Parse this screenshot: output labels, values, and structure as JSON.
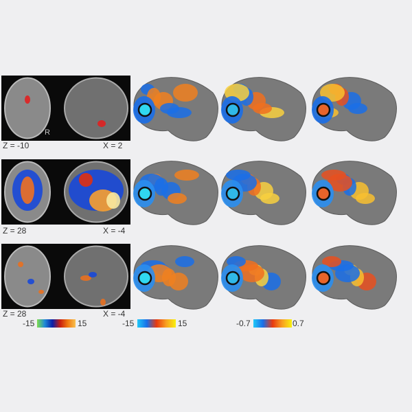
{
  "rows": [
    {
      "z_label": "Z = -10",
      "x_label": "X = 2",
      "marker": "R"
    },
    {
      "z_label": "Z = 28",
      "x_label": "X = -4"
    },
    {
      "z_label": "Z = 28",
      "x_label": "X = -4"
    }
  ],
  "colorbars": [
    {
      "min": "-15",
      "max": "15",
      "colors": [
        "#7fdc4a",
        "#1e8ad8",
        "#0a1ea8",
        "#c81e10",
        "#f07a10",
        "#f8c050"
      ]
    },
    {
      "min": "-15",
      "max": "15",
      "colors": [
        "#20c8f8",
        "#1a6ee8",
        "#e83a10",
        "#f8a020",
        "#f8f010"
      ]
    },
    {
      "min": "-0.7",
      "max": "0.7",
      "colors": [
        "#20c8f8",
        "#1a6ee8",
        "#e83a10",
        "#f8a020",
        "#f8f010"
      ]
    }
  ],
  "colors": {
    "background": "#efeff1",
    "brain_surface": "#7a7a7a",
    "roi_columns": [
      "#30d8f0",
      "#30b8e8",
      "#e8642a"
    ]
  }
}
